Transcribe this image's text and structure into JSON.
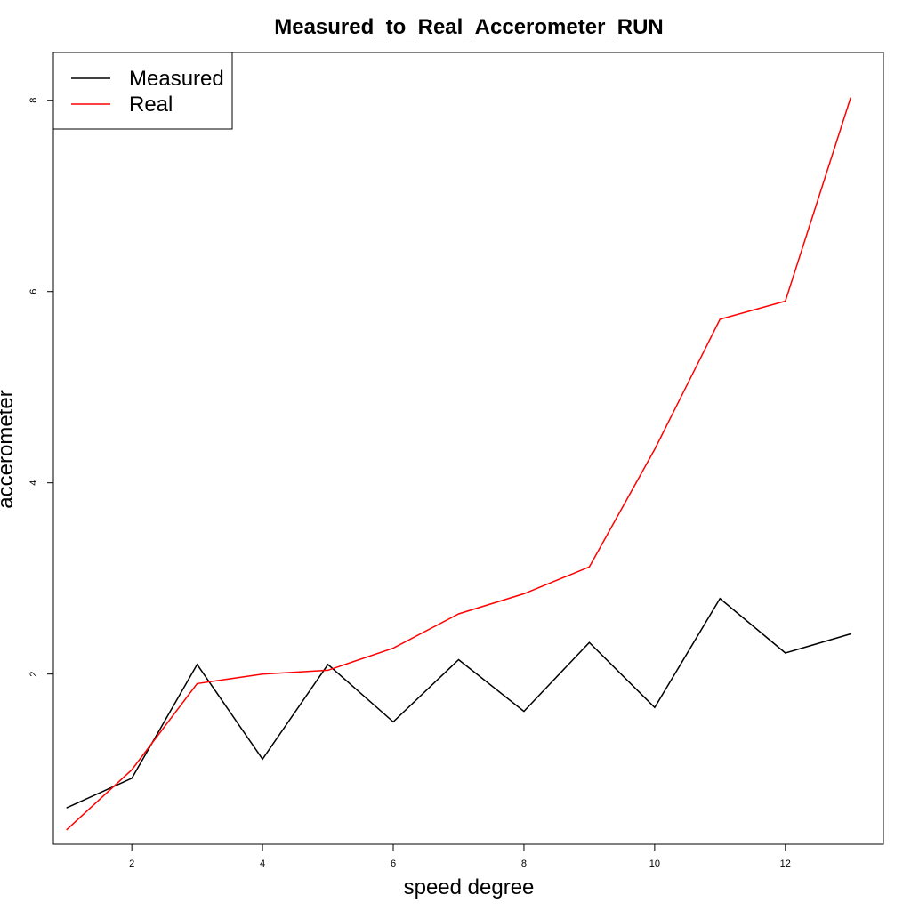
{
  "chart_data": {
    "type": "line",
    "title": "Measured_to_Real_Accerometer_RUN",
    "xlabel": "speed degree",
    "ylabel": "accerometer",
    "xlim": [
      0.8,
      13.5
    ],
    "ylim": [
      0.22,
      8.5
    ],
    "x_ticks": [
      2,
      4,
      6,
      8,
      10,
      12
    ],
    "y_ticks": [
      2,
      4,
      6,
      8
    ],
    "x": [
      1,
      2,
      3,
      4,
      5,
      6,
      7,
      8,
      9,
      10,
      11,
      12,
      13
    ],
    "legend_position": "top-left",
    "series": [
      {
        "name": "Measured",
        "color": "#000000",
        "values": [
          0.6,
          0.91,
          2.1,
          1.11,
          2.1,
          1.5,
          2.15,
          1.61,
          2.33,
          1.65,
          2.79,
          2.22,
          2.42
        ]
      },
      {
        "name": "Real",
        "color": "#ff0000",
        "values": [
          0.37,
          1.0,
          1.9,
          2.0,
          2.04,
          2.27,
          2.63,
          2.84,
          3.12,
          4.35,
          5.71,
          5.9,
          8.03
        ]
      }
    ]
  }
}
